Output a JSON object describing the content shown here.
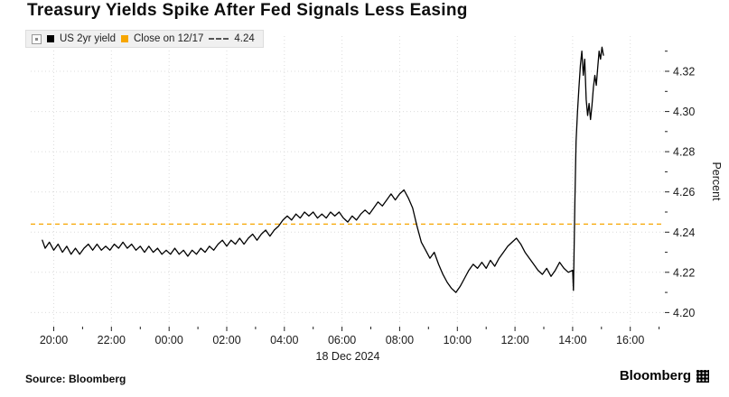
{
  "title": "Treasury Yields Spike After Fed Signals Less Easing",
  "legend": {
    "series_label": "US 2yr yield",
    "close_label": "Close on 12/17",
    "close_value": "4.24"
  },
  "x_axis": {
    "date_label": "18 Dec 2024"
  },
  "footer": {
    "source": "Source: Bloomberg",
    "brand": "Bloomberg"
  },
  "colors": {
    "line": "#000000",
    "close_line": "#f7a600",
    "grid": "#dcdcdc",
    "legend_bg": "#f0f0f0"
  },
  "chart_data": {
    "type": "line",
    "title": "Treasury Yields Spike After Fed Signals Less Easing",
    "ylabel": "Percent",
    "xlabel": "18 Dec 2024",
    "x_range": [
      19.2,
      41.2
    ],
    "y_range": [
      4.193,
      4.3375
    ],
    "x_ticks": [
      {
        "t": 20,
        "label": "20:00"
      },
      {
        "t": 22,
        "label": "22:00"
      },
      {
        "t": 24,
        "label": "00:00"
      },
      {
        "t": 26,
        "label": "02:00"
      },
      {
        "t": 28,
        "label": "04:00"
      },
      {
        "t": 30,
        "label": "06:00"
      },
      {
        "t": 32,
        "label": "08:00"
      },
      {
        "t": 34,
        "label": "10:00"
      },
      {
        "t": 36,
        "label": "12:00"
      },
      {
        "t": 38,
        "label": "14:00"
      },
      {
        "t": 40,
        "label": "16:00"
      }
    ],
    "y_ticks": [
      4.2,
      4.22,
      4.24,
      4.26,
      4.28,
      4.3,
      4.32
    ],
    "close_line": {
      "label": "Close on 12/17",
      "value": 4.244
    },
    "series": [
      {
        "name": "US 2yr yield",
        "points": [
          [
            19.6,
            4.236
          ],
          [
            19.7,
            4.232
          ],
          [
            19.85,
            4.235
          ],
          [
            20.0,
            4.231
          ],
          [
            20.15,
            4.234
          ],
          [
            20.3,
            4.23
          ],
          [
            20.45,
            4.233
          ],
          [
            20.6,
            4.229
          ],
          [
            20.75,
            4.232
          ],
          [
            20.9,
            4.229
          ],
          [
            21.05,
            4.232
          ],
          [
            21.2,
            4.234
          ],
          [
            21.35,
            4.231
          ],
          [
            21.5,
            4.234
          ],
          [
            21.65,
            4.231
          ],
          [
            21.8,
            4.233
          ],
          [
            21.95,
            4.231
          ],
          [
            22.1,
            4.234
          ],
          [
            22.25,
            4.232
          ],
          [
            22.4,
            4.235
          ],
          [
            22.55,
            4.232
          ],
          [
            22.7,
            4.234
          ],
          [
            22.85,
            4.231
          ],
          [
            23.0,
            4.233
          ],
          [
            23.15,
            4.23
          ],
          [
            23.3,
            4.233
          ],
          [
            23.45,
            4.23
          ],
          [
            23.6,
            4.232
          ],
          [
            23.75,
            4.229
          ],
          [
            23.9,
            4.231
          ],
          [
            24.05,
            4.229
          ],
          [
            24.2,
            4.232
          ],
          [
            24.35,
            4.229
          ],
          [
            24.5,
            4.231
          ],
          [
            24.65,
            4.228
          ],
          [
            24.8,
            4.231
          ],
          [
            24.95,
            4.229
          ],
          [
            25.1,
            4.232
          ],
          [
            25.25,
            4.23
          ],
          [
            25.4,
            4.233
          ],
          [
            25.55,
            4.231
          ],
          [
            25.7,
            4.234
          ],
          [
            25.85,
            4.236
          ],
          [
            26.0,
            4.233
          ],
          [
            26.15,
            4.236
          ],
          [
            26.3,
            4.234
          ],
          [
            26.45,
            4.237
          ],
          [
            26.6,
            4.234
          ],
          [
            26.75,
            4.237
          ],
          [
            26.9,
            4.239
          ],
          [
            27.05,
            4.236
          ],
          [
            27.2,
            4.239
          ],
          [
            27.35,
            4.241
          ],
          [
            27.5,
            4.238
          ],
          [
            27.65,
            4.241
          ],
          [
            27.8,
            4.243
          ],
          [
            27.95,
            4.246
          ],
          [
            28.1,
            4.248
          ],
          [
            28.25,
            4.246
          ],
          [
            28.4,
            4.249
          ],
          [
            28.55,
            4.247
          ],
          [
            28.7,
            4.25
          ],
          [
            28.85,
            4.248
          ],
          [
            29.0,
            4.25
          ],
          [
            29.15,
            4.247
          ],
          [
            29.3,
            4.249
          ],
          [
            29.45,
            4.247
          ],
          [
            29.6,
            4.25
          ],
          [
            29.75,
            4.248
          ],
          [
            29.9,
            4.25
          ],
          [
            30.05,
            4.247
          ],
          [
            30.2,
            4.245
          ],
          [
            30.35,
            4.248
          ],
          [
            30.5,
            4.246
          ],
          [
            30.65,
            4.249
          ],
          [
            30.8,
            4.251
          ],
          [
            30.95,
            4.249
          ],
          [
            31.1,
            4.252
          ],
          [
            31.25,
            4.255
          ],
          [
            31.4,
            4.253
          ],
          [
            31.55,
            4.256
          ],
          [
            31.7,
            4.259
          ],
          [
            31.85,
            4.256
          ],
          [
            32.0,
            4.259
          ],
          [
            32.15,
            4.261
          ],
          [
            32.3,
            4.257
          ],
          [
            32.45,
            4.252
          ],
          [
            32.6,
            4.243
          ],
          [
            32.75,
            4.235
          ],
          [
            32.9,
            4.231
          ],
          [
            33.05,
            4.227
          ],
          [
            33.2,
            4.23
          ],
          [
            33.35,
            4.224
          ],
          [
            33.5,
            4.219
          ],
          [
            33.65,
            4.215
          ],
          [
            33.8,
            4.212
          ],
          [
            33.95,
            4.21
          ],
          [
            34.1,
            4.213
          ],
          [
            34.25,
            4.217
          ],
          [
            34.4,
            4.221
          ],
          [
            34.55,
            4.224
          ],
          [
            34.7,
            4.222
          ],
          [
            34.85,
            4.225
          ],
          [
            35.0,
            4.222
          ],
          [
            35.15,
            4.226
          ],
          [
            35.3,
            4.223
          ],
          [
            35.45,
            4.227
          ],
          [
            35.6,
            4.23
          ],
          [
            35.75,
            4.233
          ],
          [
            35.9,
            4.235
          ],
          [
            36.05,
            4.237
          ],
          [
            36.2,
            4.234
          ],
          [
            36.35,
            4.23
          ],
          [
            36.5,
            4.227
          ],
          [
            36.65,
            4.224
          ],
          [
            36.8,
            4.221
          ],
          [
            36.95,
            4.219
          ],
          [
            37.1,
            4.222
          ],
          [
            37.25,
            4.218
          ],
          [
            37.4,
            4.221
          ],
          [
            37.55,
            4.225
          ],
          [
            37.7,
            4.222
          ],
          [
            37.85,
            4.22
          ],
          [
            38.0,
            4.221
          ],
          [
            38.03,
            4.211
          ],
          [
            38.08,
            4.255
          ],
          [
            38.12,
            4.285
          ],
          [
            38.17,
            4.3
          ],
          [
            38.22,
            4.312
          ],
          [
            38.27,
            4.323
          ],
          [
            38.32,
            4.33
          ],
          [
            38.37,
            4.318
          ],
          [
            38.42,
            4.326
          ],
          [
            38.47,
            4.306
          ],
          [
            38.52,
            4.298
          ],
          [
            38.57,
            4.304
          ],
          [
            38.62,
            4.296
          ],
          [
            38.67,
            4.303
          ],
          [
            38.72,
            4.312
          ],
          [
            38.77,
            4.318
          ],
          [
            38.82,
            4.313
          ],
          [
            38.87,
            4.322
          ],
          [
            38.92,
            4.33
          ],
          [
            38.97,
            4.326
          ],
          [
            39.02,
            4.332
          ],
          [
            39.07,
            4.328
          ]
        ]
      }
    ]
  }
}
